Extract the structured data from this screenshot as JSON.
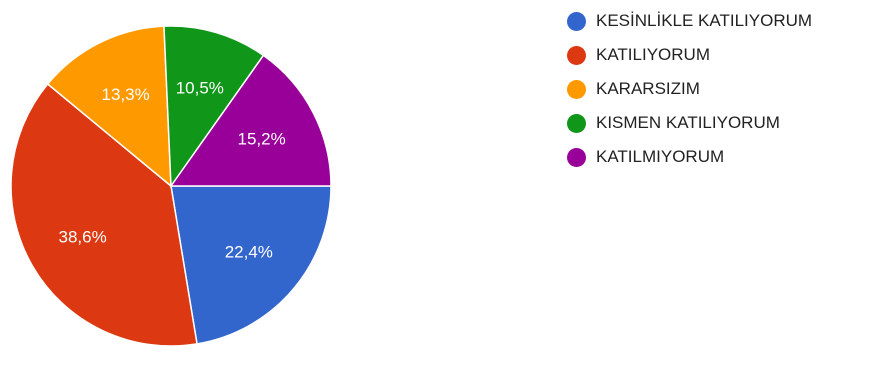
{
  "chart_data": {
    "type": "pie",
    "title": "",
    "start_angle_deg": 90,
    "direction": "clockwise",
    "legend_position": "right",
    "slices": [
      {
        "label": "KESİNLİKLE KATILIYORUM",
        "value": 22.4,
        "value_label": "22,4%",
        "color": "#3366cc"
      },
      {
        "label": "KATILIYORUM",
        "value": 38.6,
        "value_label": "38,6%",
        "color": "#dc3912"
      },
      {
        "label": "KARARSIZIM",
        "value": 13.3,
        "value_label": "13,3%",
        "color": "#ff9900"
      },
      {
        "label": "KISMEN KATILIYORUM",
        "value": 10.5,
        "value_label": "10,5%",
        "color": "#109618"
      },
      {
        "label": "KATILMIYORUM",
        "value": 15.2,
        "value_label": "15,2%",
        "color": "#990099"
      }
    ]
  }
}
